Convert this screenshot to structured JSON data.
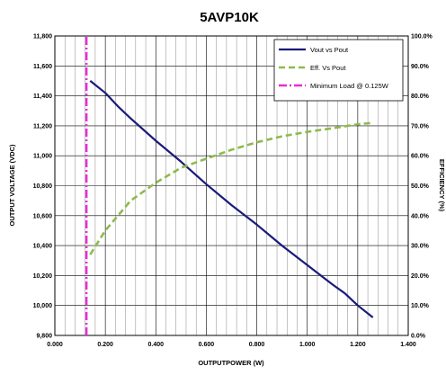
{
  "chart_data": {
    "type": "line",
    "title": "5AVP10K",
    "xlabel": "OUTPUTPOWER (W)",
    "ylabel": "OUTPUT VOLTAGE (VDC)",
    "y2label": "EFFICIENCY (%)",
    "xlim": [
      0,
      1.4
    ],
    "ylim": [
      9800,
      11800
    ],
    "y2lim": [
      0,
      100
    ],
    "x_ticks": [
      "0.000",
      "0.200",
      "0.400",
      "0.600",
      "0.800",
      "1.000",
      "1.200",
      "1.400"
    ],
    "y_ticks": [
      "9,800",
      "10,000",
      "10,200",
      "10,400",
      "10,600",
      "10,800",
      "11,000",
      "11,200",
      "11,400",
      "11,600",
      "11,800"
    ],
    "y2_ticks": [
      "0.0%",
      "10.0%",
      "20.0%",
      "30.0%",
      "40.0%",
      "50.0%",
      "60.0%",
      "70.0%",
      "80.0%",
      "90.0%",
      "100.0%"
    ],
    "grid": true,
    "legend_position": "top-right",
    "series": [
      {
        "name": "Vout vs Pout",
        "axis": "left",
        "color": "#1a1a7a",
        "style": "solid",
        "x": [
          0.14,
          0.2,
          0.25,
          0.3,
          0.4,
          0.5,
          0.6,
          0.7,
          0.8,
          0.9,
          1.0,
          1.1,
          1.15,
          1.2,
          1.26
        ],
        "y": [
          11500,
          11420,
          11330,
          11250,
          11100,
          10960,
          10810,
          10670,
          10540,
          10400,
          10270,
          10140,
          10080,
          10000,
          9920
        ]
      },
      {
        "name": "Eff. Vs Pout",
        "axis": "right",
        "color": "#8dbb4c",
        "style": "dashed",
        "x": [
          0.14,
          0.2,
          0.3,
          0.4,
          0.5,
          0.6,
          0.7,
          0.8,
          0.9,
          1.0,
          1.1,
          1.2,
          1.26
        ],
        "y": [
          27,
          35,
          45,
          51,
          56,
          59,
          62,
          64.5,
          66.5,
          68,
          69.2,
          70.5,
          71
        ]
      },
      {
        "name": "Minimum Load @ 0.125W",
        "axis": "left",
        "color": "#e62ed6",
        "style": "dash-dot",
        "x": [
          0.125,
          0.125
        ],
        "y": [
          9800,
          11800
        ]
      }
    ]
  }
}
